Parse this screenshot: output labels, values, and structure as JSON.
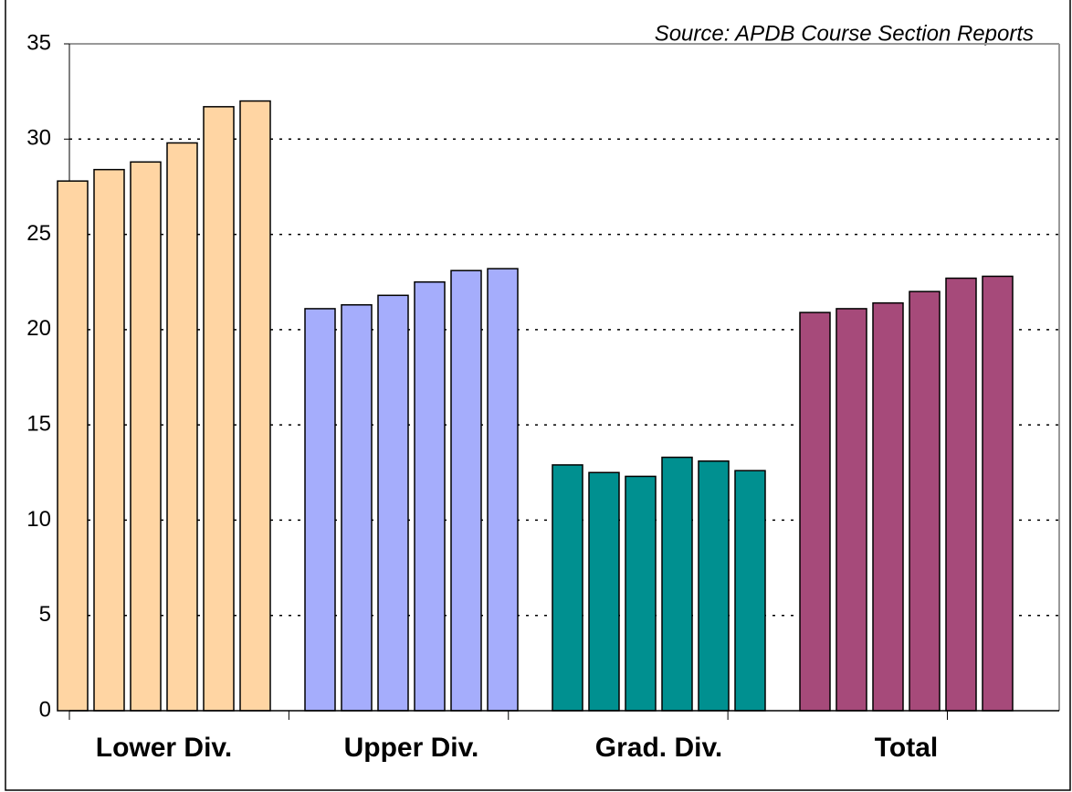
{
  "chart_data": {
    "type": "grouped_bar",
    "annotation": "Source: APDB Course Section Reports",
    "categories": [
      "Lower Div.",
      "Upper Div.",
      "Grad. Div.",
      "Total"
    ],
    "colors": [
      "#ffd5a3",
      "#a5adfc",
      "#009090",
      "#a64a7a"
    ],
    "values": [
      [
        27.8,
        28.4,
        28.8,
        29.8,
        31.7,
        32.0
      ],
      [
        21.1,
        21.3,
        21.8,
        22.5,
        23.1,
        23.2
      ],
      [
        12.9,
        12.5,
        12.3,
        13.3,
        13.1,
        12.6
      ],
      [
        20.9,
        21.1,
        21.4,
        22.0,
        22.7,
        22.8
      ]
    ],
    "ylim": [
      0,
      35
    ],
    "yticks": [
      0,
      5,
      10,
      15,
      20,
      25,
      30,
      35
    ],
    "grid": true
  }
}
